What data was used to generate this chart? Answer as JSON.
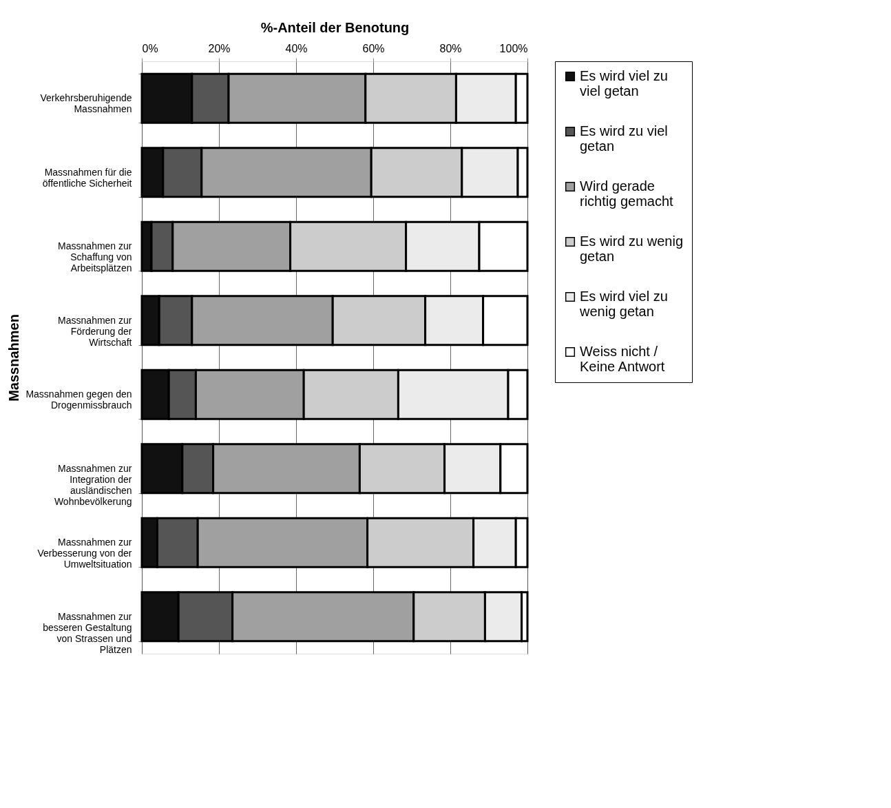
{
  "chart_data": {
    "type": "bar",
    "orientation": "horizontal",
    "stacked": true,
    "title": "%-Anteil der Benotung",
    "ylabel": "Massnahmen",
    "categories": [
      "Verkehrsberuhigende Massnahmen",
      "Massnahmen für die öffentliche Sicherheit",
      "Massnahmen zur Schaffung von Arbeitsplätzen",
      "Massnahmen zur Förderung der Wirtschaft",
      "Massnahmen gegen den Drogenmissbrauch",
      "Massnahmen zur Integration der ausländischen Wohnbevölkerung",
      "Massnahmen zur Verbesserung von der Umweltsituation",
      "Massnahmen zur besseren Gestaltung von Strassen und Plätzen"
    ],
    "series": [
      {
        "name": "Es wird viel zu viel getan",
        "color": "#111111",
        "values": [
          13,
          5.5,
          2.5,
          4.5,
          7,
          10.5,
          4,
          9.5
        ]
      },
      {
        "name": "Es wird zu viel getan",
        "color": "#555555",
        "values": [
          9.5,
          10,
          5.5,
          8.5,
          7,
          8,
          10.5,
          14
        ]
      },
      {
        "name": "Wird gerade richtig gemacht",
        "color": "#a0a0a0",
        "values": [
          35.5,
          44,
          30.5,
          36.5,
          28,
          38,
          44,
          47
        ]
      },
      {
        "name": "Es wird zu wenig getan",
        "color": "#cccccc",
        "values": [
          23.5,
          23.5,
          30,
          24,
          24.5,
          22,
          27.5,
          18.5
        ]
      },
      {
        "name": "Es wird viel zu wenig getan",
        "color": "#ebebeb",
        "values": [
          15.5,
          14.5,
          19,
          15,
          28.5,
          14.5,
          11,
          9.5
        ]
      },
      {
        "name": "Weiss nicht / Keine Antwort",
        "color": "#ffffff",
        "values": [
          3,
          2.5,
          12.5,
          11.5,
          5,
          7,
          3,
          1.5
        ]
      }
    ],
    "xlim": [
      0,
      100
    ],
    "xticks": [
      {
        "value": 0,
        "label": "0%"
      },
      {
        "value": 20,
        "label": "20%"
      },
      {
        "value": 40,
        "label": "40%"
      },
      {
        "value": 60,
        "label": "60%"
      },
      {
        "value": 80,
        "label": "80%"
      },
      {
        "value": 100,
        "label": "100%"
      }
    ],
    "grid": "x",
    "legend": "right"
  }
}
